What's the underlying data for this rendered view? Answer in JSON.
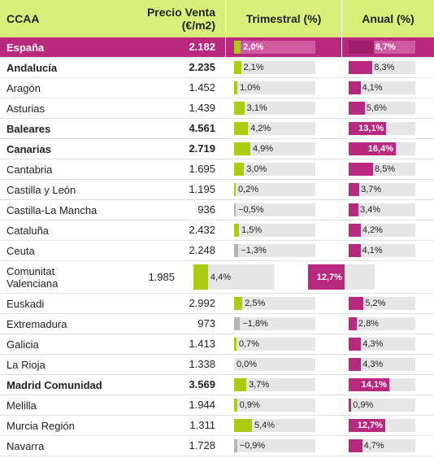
{
  "header": {
    "name": "CCAA",
    "price_line1": "Precio Venta",
    "price_line2": "(€/m2)",
    "tri": "Trimestral (%)",
    "anu": "Anual (%)"
  },
  "colors": {
    "header_bg": "#d8f07a",
    "highlight": "#b8287f",
    "tri_bar": "#a8cc10",
    "tri_neg_bar": "#b5b5b5",
    "anu_bar": "#b8287f"
  },
  "chart_data": {
    "type": "table",
    "columns": [
      "CCAA",
      "Precio Venta (€/m2)",
      "Trimestral (%)",
      "Anual (%)"
    ],
    "rows": [
      {
        "name": "España",
        "price": "2.182",
        "tri": 2.0,
        "tri_label": "2,0%",
        "anu": 8.7,
        "anu_label": "8,7%",
        "bold": true,
        "highlight": true
      },
      {
        "name": "Andalucía",
        "price": "2.235",
        "tri": 2.1,
        "tri_label": "2,1%",
        "anu": 8.3,
        "anu_label": "8,3%",
        "bold": true
      },
      {
        "name": "Aragón",
        "price": "1.452",
        "tri": 1.0,
        "tri_label": "1,0%",
        "anu": 4.1,
        "anu_label": "4,1%"
      },
      {
        "name": "Asturias",
        "price": "1.439",
        "tri": 3.1,
        "tri_label": "3,1%",
        "anu": 5.6,
        "anu_label": "5,6%"
      },
      {
        "name": "Baleares",
        "price": "4.561",
        "tri": 4.2,
        "tri_label": "4,2%",
        "anu": 13.1,
        "anu_label": "13,1%",
        "bold": true
      },
      {
        "name": "Canarias",
        "price": "2.719",
        "tri": 4.9,
        "tri_label": "4,9%",
        "anu": 16.4,
        "anu_label": "16,4%",
        "bold": true
      },
      {
        "name": "Cantabria",
        "price": "1.695",
        "tri": 3.0,
        "tri_label": "3,0%",
        "anu": 8.5,
        "anu_label": "8,5%"
      },
      {
        "name": "Castilla y León",
        "price": "1.195",
        "tri": 0.2,
        "tri_label": "0,2%",
        "anu": 3.7,
        "anu_label": "3,7%"
      },
      {
        "name": "Castilla-La Mancha",
        "price": "936",
        "tri": -0.5,
        "tri_label": "−0,5%",
        "anu": 3.4,
        "anu_label": "3,4%"
      },
      {
        "name": "Cataluña",
        "price": "2.432",
        "tri": 1.5,
        "tri_label": "1,5%",
        "anu": 4.2,
        "anu_label": "4,2%"
      },
      {
        "name": "Ceuta",
        "price": "2.248",
        "tri": -1.3,
        "tri_label": "−1,3%",
        "anu": 4.1,
        "anu_label": "4,1%"
      },
      {
        "name": "Comunitat Valenciana",
        "price": "1.985",
        "tri": 4.4,
        "tri_label": "4,4%",
        "anu": 12.7,
        "anu_label": "12,7%",
        "tall": true
      },
      {
        "name": "Euskadi",
        "price": "2.992",
        "tri": 2.5,
        "tri_label": "2,5%",
        "anu": 5.2,
        "anu_label": "5,2%"
      },
      {
        "name": "Extremadura",
        "price": "973",
        "tri": -1.8,
        "tri_label": "−1,8%",
        "anu": 2.8,
        "anu_label": "2,8%"
      },
      {
        "name": "Galicia",
        "price": "1.413",
        "tri": 0.7,
        "tri_label": "0,7%",
        "anu": 4.3,
        "anu_label": "4,3%"
      },
      {
        "name": "La Rioja",
        "price": "1.338",
        "tri": 0.0,
        "tri_label": "0,0%",
        "anu": 4.3,
        "anu_label": "4,3%"
      },
      {
        "name": "Madrid Comunidad",
        "price": "3.569",
        "tri": 3.7,
        "tri_label": "3,7%",
        "anu": 14.1,
        "anu_label": "14,1%",
        "bold": true
      },
      {
        "name": "Melilla",
        "price": "1.944",
        "tri": 0.9,
        "tri_label": "0,9%",
        "anu": 0.9,
        "anu_label": "0,9%"
      },
      {
        "name": "Murcia Región",
        "price": "1.311",
        "tri": 5.4,
        "tri_label": "5,4%",
        "anu": 12.7,
        "anu_label": "12,7%"
      },
      {
        "name": "Navarra",
        "price": "1.728",
        "tri": -0.9,
        "tri_label": "−0,9%",
        "anu": 4.7,
        "anu_label": "4,7%"
      }
    ],
    "tri_max": 5.4,
    "anu_max": 16.4
  }
}
